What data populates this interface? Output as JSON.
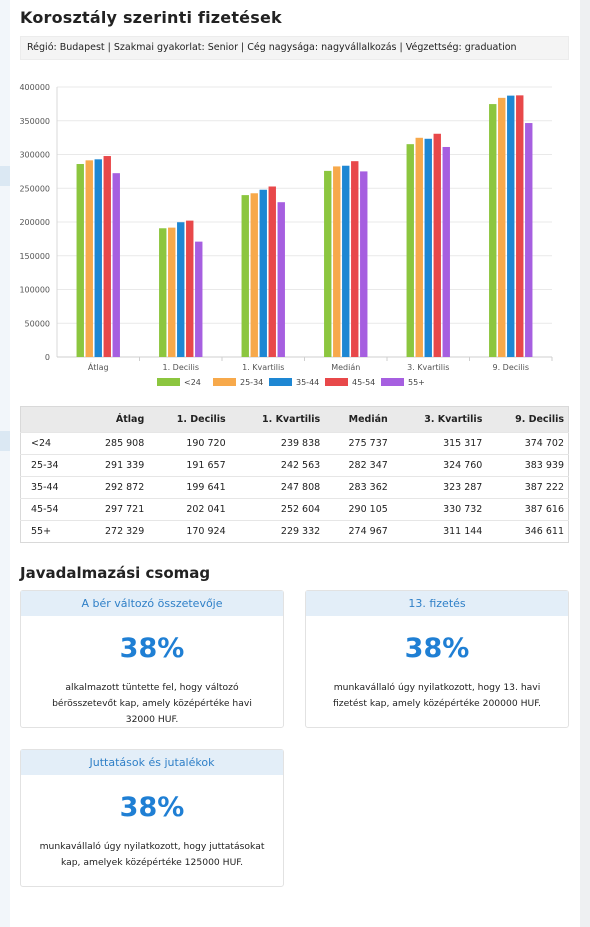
{
  "page": {
    "title": "Korosztály szerinti fizetések",
    "filters": "Régió: Budapest | Szakmai gyakorlat: Senior | Cég nagysága: nagyvállalkozás | Végzettség: graduation"
  },
  "chart_data": {
    "type": "bar",
    "categories": [
      "Átlag",
      "1. Decilis",
      "1. Kvartilis",
      "Medián",
      "3. Kvartilis",
      "9. Decilis"
    ],
    "series": [
      {
        "name": "<24",
        "color": "#8cc63f",
        "values": [
          285908,
          190720,
          239838,
          275737,
          315317,
          374702
        ]
      },
      {
        "name": "25-34",
        "color": "#f7a94b",
        "values": [
          291339,
          191657,
          242563,
          282347,
          324760,
          383939
        ]
      },
      {
        "name": "35-44",
        "color": "#1e87d3",
        "values": [
          292872,
          199641,
          247808,
          283362,
          323287,
          387222
        ]
      },
      {
        "name": "45-54",
        "color": "#e8484a",
        "values": [
          297721,
          202041,
          252604,
          290105,
          330732,
          387616
        ]
      },
      {
        "name": "55+",
        "color": "#a65fe0",
        "values": [
          272329,
          170924,
          229332,
          274967,
          311144,
          346611
        ]
      }
    ],
    "ylim": [
      0,
      400000
    ],
    "yticks": [
      "0",
      "50000",
      "100000",
      "150000",
      "200000",
      "250000",
      "300000",
      "350000",
      "400000"
    ],
    "yticks_values": [
      0,
      50000,
      100000,
      150000,
      200000,
      250000,
      300000,
      350000,
      400000
    ],
    "grid": true,
    "legend": "bottom"
  },
  "table": {
    "headers": [
      "",
      "Átlag",
      "1. Decilis",
      "1. Kvartilis",
      "Medián",
      "3. Kvartilis",
      "9. Decilis"
    ],
    "rows": [
      [
        "<24",
        "285 908",
        "190 720",
        "239 838",
        "275 737",
        "315 317",
        "374 702"
      ],
      [
        "25-34",
        "291 339",
        "191 657",
        "242 563",
        "282 347",
        "324 760",
        "383 939"
      ],
      [
        "35-44",
        "292 872",
        "199 641",
        "247 808",
        "283 362",
        "323 287",
        "387 222"
      ],
      [
        "45-54",
        "297 721",
        "202 041",
        "252 604",
        "290 105",
        "330 732",
        "387 616"
      ],
      [
        "55+",
        "272 329",
        "170 924",
        "229 332",
        "274 967",
        "311 144",
        "346 611"
      ]
    ]
  },
  "package": {
    "title": "Javadalmazási csomag",
    "cards": [
      {
        "title": "A bér változó összetevője",
        "percent": "38%",
        "desc": "alkalmazott tüntette fel, hogy változó bérösszetevőt kap, amely középértéke havi 32000 HUF."
      },
      {
        "title": "13. fizetés",
        "percent": "38%",
        "desc": "munkavállaló úgy nyilatkozott, hogy 13. havi fizetést kap, amely középértéke 200000 HUF."
      },
      {
        "title": "Juttatások és jutalékok",
        "percent": "38%",
        "desc": "munkavállaló úgy nyilatkozott, hogy juttatásokat kap, amelyek középértéke 125000 HUF."
      }
    ]
  }
}
